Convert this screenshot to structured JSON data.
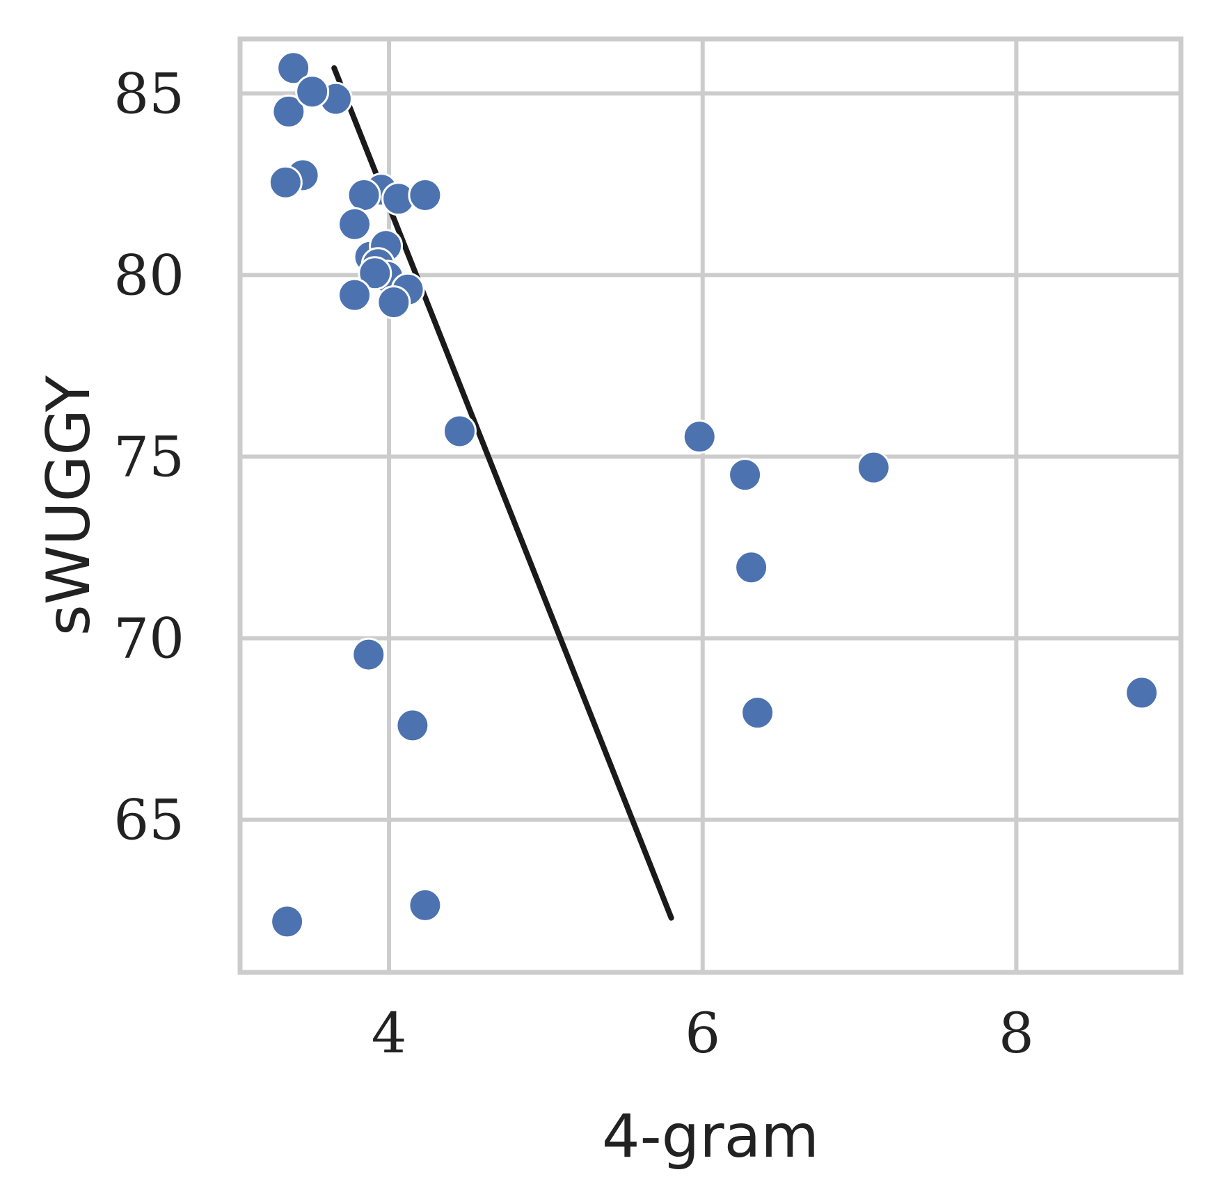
{
  "chart_data": {
    "type": "scatter",
    "title": "",
    "xlabel": "4-gram",
    "ylabel": "sWUGGY",
    "xlim": [
      3.05,
      9.05
    ],
    "ylim": [
      60.8,
      86.5
    ],
    "xticks": [
      4,
      6,
      8
    ],
    "yticks": [
      65,
      70,
      75,
      80,
      85
    ],
    "grid": true,
    "colors": {
      "points": "#4c72b0",
      "line": "#1a1a1a",
      "grid": "#cccccc"
    },
    "points": [
      {
        "x": 3.39,
        "y": 85.7
      },
      {
        "x": 3.66,
        "y": 84.85
      },
      {
        "x": 3.36,
        "y": 84.5
      },
      {
        "x": 3.51,
        "y": 85.05
      },
      {
        "x": 3.45,
        "y": 82.75
      },
      {
        "x": 3.34,
        "y": 82.55
      },
      {
        "x": 3.95,
        "y": 82.35
      },
      {
        "x": 4.06,
        "y": 82.1
      },
      {
        "x": 3.84,
        "y": 82.2
      },
      {
        "x": 4.23,
        "y": 82.2
      },
      {
        "x": 3.78,
        "y": 81.4
      },
      {
        "x": 3.88,
        "y": 80.5
      },
      {
        "x": 3.98,
        "y": 80.8
      },
      {
        "x": 3.93,
        "y": 80.3
      },
      {
        "x": 3.99,
        "y": 79.95
      },
      {
        "x": 3.91,
        "y": 80.05
      },
      {
        "x": 4.12,
        "y": 79.6
      },
      {
        "x": 4.03,
        "y": 79.25
      },
      {
        "x": 3.78,
        "y": 79.45
      },
      {
        "x": 4.45,
        "y": 75.7
      },
      {
        "x": 5.98,
        "y": 75.55
      },
      {
        "x": 6.27,
        "y": 74.5
      },
      {
        "x": 7.09,
        "y": 74.7
      },
      {
        "x": 6.31,
        "y": 71.95
      },
      {
        "x": 3.87,
        "y": 69.55
      },
      {
        "x": 4.15,
        "y": 67.6
      },
      {
        "x": 6.35,
        "y": 67.95
      },
      {
        "x": 8.8,
        "y": 68.5
      },
      {
        "x": 3.35,
        "y": 62.2
      },
      {
        "x": 4.23,
        "y": 62.65
      }
    ],
    "trend_line": {
      "x": [
        3.65,
        5.8
      ],
      "y": [
        85.7,
        62.3
      ]
    }
  }
}
